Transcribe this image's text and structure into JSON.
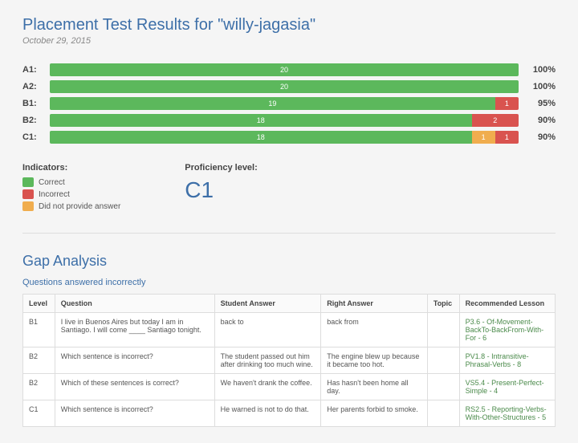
{
  "header": {
    "title": "Placement Test Results for \"willy-jagasia\"",
    "date": "October 29, 2015"
  },
  "chart": {
    "colors": {
      "correct": "#5cb85c",
      "incorrect": "#d9534f",
      "noanswer": "#f0ad4e"
    },
    "rows": [
      {
        "level": "A1:",
        "correct": 20,
        "incorrect": 0,
        "noanswer": 0,
        "pct": "100%"
      },
      {
        "level": "A2:",
        "correct": 20,
        "incorrect": 0,
        "noanswer": 0,
        "pct": "100%"
      },
      {
        "level": "B1:",
        "correct": 19,
        "incorrect": 1,
        "noanswer": 0,
        "pct": "95%"
      },
      {
        "level": "B2:",
        "correct": 18,
        "incorrect": 2,
        "noanswer": 0,
        "pct": "90%"
      },
      {
        "level": "C1:",
        "correct": 18,
        "incorrect": 1,
        "noanswer": 1,
        "pct": "90%"
      }
    ]
  },
  "indicators": {
    "title": "Indicators:",
    "items": [
      {
        "cls": "correct",
        "label": "Correct"
      },
      {
        "cls": "incorrect",
        "label": "Incorrect"
      },
      {
        "cls": "noanswer",
        "label": "Did not provide answer"
      }
    ]
  },
  "proficiency": {
    "title": "Proficiency level:",
    "value": "C1"
  },
  "gap": {
    "title": "Gap Analysis",
    "subtitle": "Questions answered incorrectly",
    "columns": [
      "Level",
      "Question",
      "Student Answer",
      "Right Answer",
      "Topic",
      "Recommended Lesson"
    ],
    "rows": [
      {
        "level": "B1",
        "question": "I live in Buenos Aires but today I am in Santiago. I will come ____ Santiago tonight.",
        "student": "back to",
        "right": "back from",
        "topic": "",
        "lesson": "P3.6 - Of-Movement-BackTo-BackFrom-With-For - 6"
      },
      {
        "level": "B2",
        "question": "Which sentence is incorrect?",
        "student": "The student passed out him after drinking too much wine.",
        "right": "The engine blew up because it became too hot.",
        "topic": "",
        "lesson": "PV1.8 - Intransitive-Phrasal-Verbs - 8"
      },
      {
        "level": "B2",
        "question": "Which of these sentences is correct?",
        "student": "We haven't drank the coffee.",
        "right": "Has hasn't been home all day.",
        "topic": "",
        "lesson": "VS5.4 - Present-Perfect-Simple - 4"
      },
      {
        "level": "C1",
        "question": "Which sentence is incorrect?",
        "student": "He warned is not to do that.",
        "right": "Her parents forbid to smoke.",
        "topic": "",
        "lesson": "RS2.5 - Reporting-Verbs-With-Other-Structures - 5"
      }
    ]
  }
}
